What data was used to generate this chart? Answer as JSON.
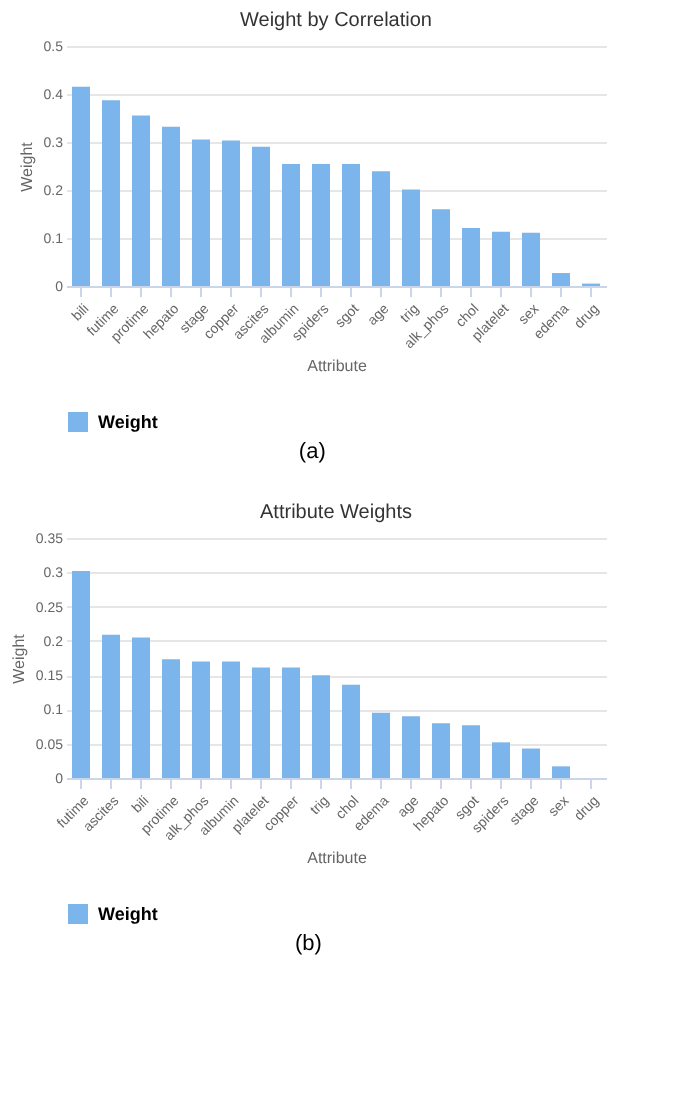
{
  "chart_data": [
    {
      "type": "bar",
      "title": "Weight by Correlation",
      "xlabel": "Attribute",
      "ylabel": "Weight",
      "categories": [
        "bili",
        "futime",
        "protime",
        "hepato",
        "stage",
        "copper",
        "ascites",
        "albumin",
        "spiders",
        "sgot",
        "age",
        "trig",
        "alk_phos",
        "chol",
        "platelet",
        "sex",
        "edema",
        "drug"
      ],
      "series": [
        {
          "name": "Weight",
          "color": "#7cb5ec",
          "values": [
            0.415,
            0.387,
            0.355,
            0.332,
            0.305,
            0.303,
            0.29,
            0.254,
            0.254,
            0.254,
            0.239,
            0.201,
            0.16,
            0.121,
            0.113,
            0.111,
            0.027,
            0.005
          ]
        }
      ],
      "ylim": [
        0,
        0.5
      ],
      "yticks": [
        0,
        0.1,
        0.2,
        0.3,
        0.4,
        0.5
      ],
      "grid": "y",
      "legend": "bottom",
      "annotations": [
        "(a)"
      ]
    },
    {
      "type": "bar",
      "title": "Attribute Weights",
      "xlabel": "Attribute",
      "ylabel": "Weight",
      "categories": [
        "futime",
        "ascites",
        "bili",
        "protime",
        "alk_phos",
        "albumin",
        "platelet",
        "copper",
        "trig",
        "chol",
        "edema",
        "age",
        "hepato",
        "sgot",
        "spiders",
        "stage",
        "sex",
        "drug"
      ],
      "series": [
        {
          "name": "Weight",
          "color": "#7cb5ec",
          "values": [
            0.302,
            0.209,
            0.205,
            0.173,
            0.17,
            0.17,
            0.161,
            0.161,
            0.15,
            0.136,
            0.095,
            0.09,
            0.08,
            0.077,
            0.052,
            0.043,
            0.017,
            0.0
          ]
        }
      ],
      "ylim": [
        0,
        0.35
      ],
      "yticks": [
        0,
        0.05,
        0.1,
        0.15,
        0.2,
        0.25,
        0.3,
        0.35
      ],
      "grid": "y",
      "legend": "bottom",
      "annotations": [
        "(b)"
      ]
    }
  ]
}
